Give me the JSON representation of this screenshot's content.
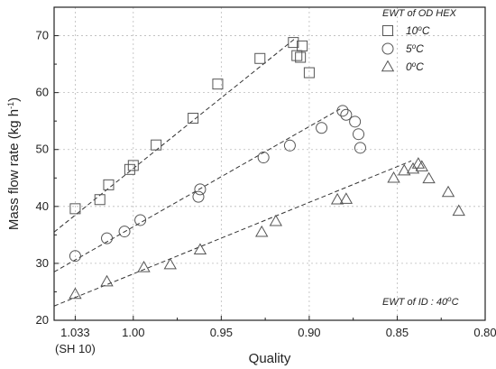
{
  "chart_data": {
    "type": "scatter",
    "xlabel": "Quality",
    "ylabel": "Mass flow rate (kg h",
    "ylabel_sup": "-1",
    "ylabel_close": ")",
    "xlim": [
      1.045,
      0.8
    ],
    "ylim": [
      20,
      75
    ],
    "x_reversed": true,
    "x_ticks": [
      {
        "value": 1.033,
        "label": "1.033",
        "sublabel": "(SH 10)"
      },
      {
        "value": 1.0,
        "label": "1.00"
      },
      {
        "value": 0.95,
        "label": "0.95"
      },
      {
        "value": 0.9,
        "label": "0.90"
      },
      {
        "value": 0.85,
        "label": "0.85"
      },
      {
        "value": 0.8,
        "label": "0.80"
      }
    ],
    "y_ticks": [
      20,
      30,
      40,
      50,
      60,
      70
    ],
    "grid": true,
    "legend": {
      "title": "EWT of OD HEX",
      "position": "top-right",
      "entries": [
        {
          "label_main": "10",
          "label_sup": "o",
          "label_unit": "C",
          "marker": "square"
        },
        {
          "label_main": "5",
          "label_sup": "o",
          "label_unit": "C",
          "marker": "circle"
        },
        {
          "label_main": "0",
          "label_sup": "o",
          "label_unit": "C",
          "marker": "triangle"
        }
      ]
    },
    "annotation": {
      "main": "EWT of ID : 40",
      "sup": "o",
      "unit": "C",
      "position": "bottom-right"
    },
    "series": [
      {
        "marker": "square",
        "x": [
          1.033,
          1.019,
          1.014,
          1.002,
          1.0,
          0.987,
          0.966,
          0.952,
          0.928,
          0.909,
          0.907,
          0.905,
          0.904,
          0.9
        ],
        "y": [
          39.6,
          41.2,
          43.8,
          46.5,
          47.2,
          50.8,
          55.5,
          61.5,
          66.0,
          68.8,
          66.5,
          66.2,
          68.2,
          63.5
        ],
        "fit": {
          "x": [
            1.045,
            0.908
          ],
          "y": [
            35.5,
            69.5
          ]
        }
      },
      {
        "marker": "circle",
        "x": [
          1.033,
          1.015,
          1.005,
          0.996,
          0.963,
          0.962,
          0.926,
          0.911,
          0.893,
          0.881,
          0.879,
          0.874,
          0.872,
          0.871
        ],
        "y": [
          31.3,
          34.4,
          35.6,
          37.6,
          41.7,
          43.0,
          48.6,
          50.7,
          53.8,
          56.8,
          56.1,
          54.9,
          52.7,
          50.3
        ],
        "fit": {
          "x": [
            1.045,
            0.882
          ],
          "y": [
            28.5,
            57.2
          ]
        }
      },
      {
        "marker": "triangle",
        "x": [
          1.033,
          1.015,
          0.994,
          0.979,
          0.962,
          0.927,
          0.919,
          0.884,
          0.879,
          0.852,
          0.846,
          0.841,
          0.838,
          0.836,
          0.832,
          0.821,
          0.815
        ],
        "y": [
          24.6,
          26.8,
          29.3,
          29.8,
          32.4,
          35.5,
          37.4,
          41.2,
          41.3,
          45.0,
          46.3,
          46.6,
          47.5,
          47.0,
          44.9,
          42.5,
          39.2
        ],
        "fit": {
          "x": [
            1.045,
            0.842
          ],
          "y": [
            22.5,
            48.0
          ]
        }
      }
    ]
  }
}
